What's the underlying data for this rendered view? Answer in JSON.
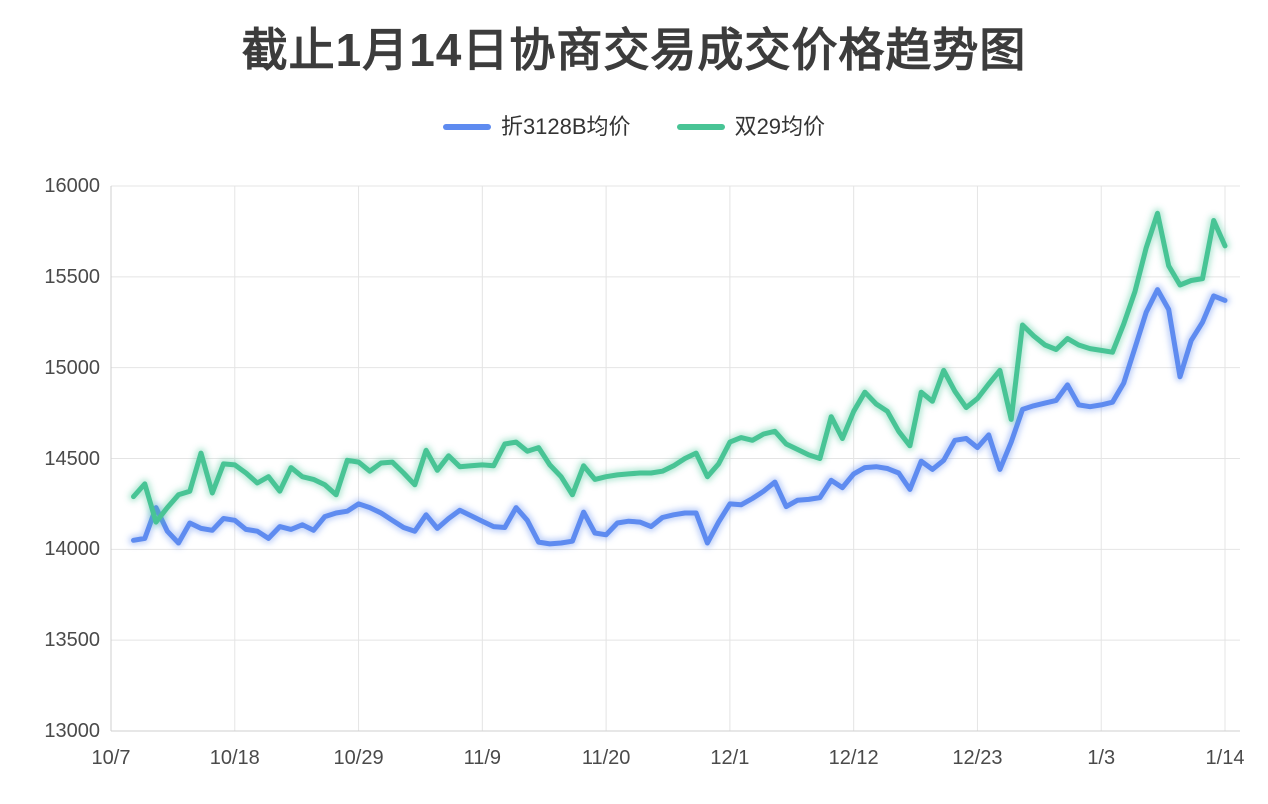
{
  "title": {
    "text": "截止1月14日协商交易成交价格趋势图"
  },
  "legend": {
    "items": [
      {
        "label": "折3128B均价",
        "color": "#5E8BF0"
      },
      {
        "label": "双29均价",
        "color": "#48C495"
      }
    ]
  },
  "chart_data": {
    "type": "line",
    "title": "截止1月14日协商交易成交价格趋势图",
    "legend_position": "top-center",
    "grid": true,
    "ylim": [
      13000,
      16000
    ],
    "y_tick_step": 500,
    "y_tick_labels": [
      "16000",
      "15500",
      "15000",
      "14500",
      "14000",
      "13500",
      "13000"
    ],
    "x_tick_labels": [
      "10/7",
      "10/18",
      "10/29",
      "11/9",
      "11/20",
      "12/1",
      "12/12",
      "12/23",
      "1/3",
      "1/14"
    ],
    "x_tick_day_index": [
      0,
      11,
      22,
      33,
      44,
      55,
      66,
      77,
      88,
      99
    ],
    "x_total_days": 100,
    "data_start_day_index": 2,
    "x": [
      "10/9",
      "10/10",
      "10/11",
      "10/12",
      "10/13",
      "10/14",
      "10/15",
      "10/16",
      "10/17",
      "10/18",
      "10/19",
      "10/20",
      "10/21",
      "10/22",
      "10/23",
      "10/24",
      "10/25",
      "10/26",
      "10/27",
      "10/28",
      "10/29",
      "10/30",
      "10/31",
      "11/1",
      "11/2",
      "11/3",
      "11/4",
      "11/5",
      "11/6",
      "11/7",
      "11/8",
      "11/9",
      "11/10",
      "11/11",
      "11/12",
      "11/13",
      "11/14",
      "11/15",
      "11/16",
      "11/17",
      "11/18",
      "11/19",
      "11/20",
      "11/21",
      "11/22",
      "11/23",
      "11/24",
      "11/25",
      "11/26",
      "11/27",
      "11/28",
      "11/29",
      "11/30",
      "12/1",
      "12/2",
      "12/3",
      "12/4",
      "12/5",
      "12/6",
      "12/7",
      "12/8",
      "12/9",
      "12/10",
      "12/11",
      "12/12",
      "12/13",
      "12/14",
      "12/15",
      "12/16",
      "12/17",
      "12/18",
      "12/19",
      "12/20",
      "12/21",
      "12/22",
      "12/23",
      "12/24",
      "12/25",
      "12/26",
      "12/27",
      "12/28",
      "12/29",
      "12/30",
      "12/31",
      "1/1",
      "1/2",
      "1/3",
      "1/4",
      "1/5",
      "1/6",
      "1/7",
      "1/8",
      "1/9",
      "1/10",
      "1/11",
      "1/12",
      "1/13",
      "1/14"
    ],
    "series": [
      {
        "name": "折3128B均价",
        "color": "#5E8BF0",
        "values": [
          14050,
          14060,
          14230,
          14100,
          14035,
          14145,
          14115,
          14105,
          14170,
          14160,
          14110,
          14100,
          14060,
          14125,
          14110,
          14135,
          14105,
          14180,
          14200,
          14210,
          14250,
          14230,
          14200,
          14160,
          14120,
          14100,
          14190,
          14115,
          14170,
          14215,
          14185,
          14155,
          14125,
          14120,
          14230,
          14160,
          14040,
          14030,
          14035,
          14045,
          14205,
          14090,
          14080,
          14145,
          14155,
          14150,
          14125,
          14175,
          14190,
          14200,
          14200,
          14035,
          14150,
          14250,
          14245,
          14280,
          14320,
          14370,
          14235,
          14270,
          14275,
          14285,
          14380,
          14340,
          14415,
          14450,
          14455,
          14445,
          14420,
          14330,
          14485,
          14440,
          14490,
          14600,
          14610,
          14560,
          14630,
          14440,
          14590,
          14770,
          14790,
          14805,
          14820,
          14905,
          14795,
          14785,
          14795,
          14810,
          14915,
          15110,
          15305,
          15430,
          15320,
          14950,
          15150,
          15250,
          15395,
          15370
        ]
      },
      {
        "name": "双29均价",
        "color": "#48C495",
        "values": [
          14290,
          14360,
          14150,
          14230,
          14300,
          14320,
          14530,
          14310,
          14470,
          14465,
          14420,
          14365,
          14400,
          14320,
          14450,
          14400,
          14385,
          14355,
          14300,
          14490,
          14480,
          14430,
          14475,
          14480,
          14420,
          14355,
          14545,
          14435,
          14515,
          14455,
          14460,
          14465,
          14460,
          14580,
          14590,
          14540,
          14560,
          14465,
          14400,
          14300,
          14460,
          14385,
          14400,
          14410,
          14415,
          14420,
          14420,
          14430,
          14460,
          14500,
          14530,
          14400,
          14470,
          14590,
          14615,
          14600,
          14635,
          14650,
          14580,
          14550,
          14520,
          14500,
          14730,
          14610,
          14760,
          14865,
          14800,
          14760,
          14650,
          14570,
          14865,
          14815,
          14985,
          14870,
          14780,
          14830,
          14910,
          14985,
          14715,
          15235,
          15175,
          15125,
          15100,
          15160,
          15125,
          15105,
          15095,
          15085,
          15240,
          15420,
          15660,
          15850,
          15560,
          15455,
          15480,
          15490,
          15810,
          15670
        ]
      }
    ],
    "styles": {
      "grid_color": "#e4e4e4",
      "axis_color": "#cfcfcf",
      "label_color": "#4a4a4a",
      "title_color": "#3c3c3c",
      "line_glow": true
    }
  }
}
